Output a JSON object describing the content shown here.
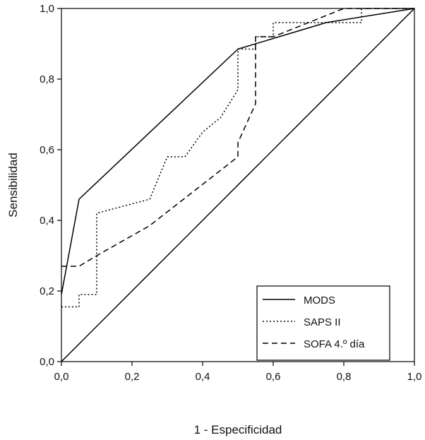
{
  "chart_data": {
    "type": "line",
    "xlabel": "1 - Especificidad",
    "ylabel": "Sensibilidad",
    "xlim": [
      0,
      1
    ],
    "ylim": [
      0,
      1
    ],
    "x_ticks": [
      "0,0",
      "0,2",
      "0,4",
      "0,6",
      "0,8",
      "1,0"
    ],
    "y_ticks": [
      "0,0",
      "0,2",
      "0,4",
      "0,6",
      "0,8",
      "1,0"
    ],
    "grid": false,
    "legend_position": "bottom-right",
    "reference_line": {
      "x": [
        0,
        1
      ],
      "y": [
        0,
        1
      ]
    },
    "series": [
      {
        "name": "MODS",
        "style": "solid",
        "x": [
          0.0,
          0.05,
          0.5,
          0.75,
          1.0
        ],
        "y": [
          0.19,
          0.46,
          0.885,
          0.96,
          1.0
        ]
      },
      {
        "name": "SAPS II",
        "style": "dotted",
        "x": [
          0.0,
          0.05,
          0.05,
          0.1,
          0.1,
          0.25,
          0.3,
          0.35,
          0.4,
          0.45,
          0.5,
          0.5,
          0.55,
          0.55,
          0.6,
          0.6,
          0.85,
          0.85,
          1.0
        ],
        "y": [
          0.155,
          0.155,
          0.19,
          0.19,
          0.42,
          0.46,
          0.58,
          0.58,
          0.65,
          0.69,
          0.77,
          0.885,
          0.885,
          0.92,
          0.92,
          0.96,
          0.96,
          1.0,
          1.0
        ]
      },
      {
        "name": "SOFA 4.º día",
        "style": "dashed",
        "x": [
          0.0,
          0.05,
          0.1,
          0.25,
          0.5,
          0.5,
          0.55,
          0.55,
          0.6,
          0.8,
          1.0
        ],
        "y": [
          0.27,
          0.27,
          0.3,
          0.385,
          0.58,
          0.62,
          0.73,
          0.92,
          0.92,
          1.0,
          1.0
        ]
      }
    ]
  }
}
